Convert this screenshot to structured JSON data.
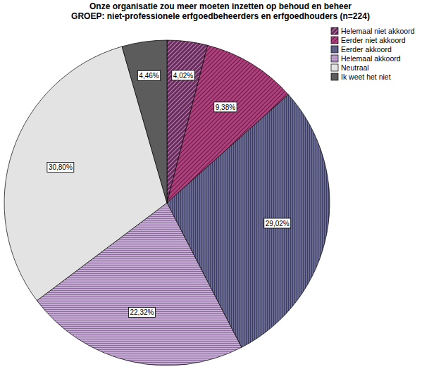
{
  "chart_data": {
    "type": "pie",
    "title": "Onze organisatie zou meer moeten inzetten op behoud en beheer",
    "subtitle": "GROEP: niet-professionele erfgoedbeheerders en erfgoedhouders (n=224)",
    "categories": [
      "Helemaal niet akkoord",
      "Eerder niet akkoord",
      "Eerder akkoord",
      "Helemaal akkoord",
      "Neutraal",
      "Ik weet het niet"
    ],
    "values": [
      4.02,
      9.38,
      29.02,
      22.32,
      30.8,
      4.46
    ],
    "value_labels": [
      "4,02%",
      "9,38%",
      "29,02%",
      "22,32%",
      "30,80%",
      "4,46%"
    ],
    "colors": [
      "#6b2a5e",
      "#b0407e",
      "#6d6f9c",
      "#c8a9d9",
      "#e3e3e3",
      "#5c5c5c"
    ],
    "data_labels": true,
    "legend": "upper right"
  }
}
